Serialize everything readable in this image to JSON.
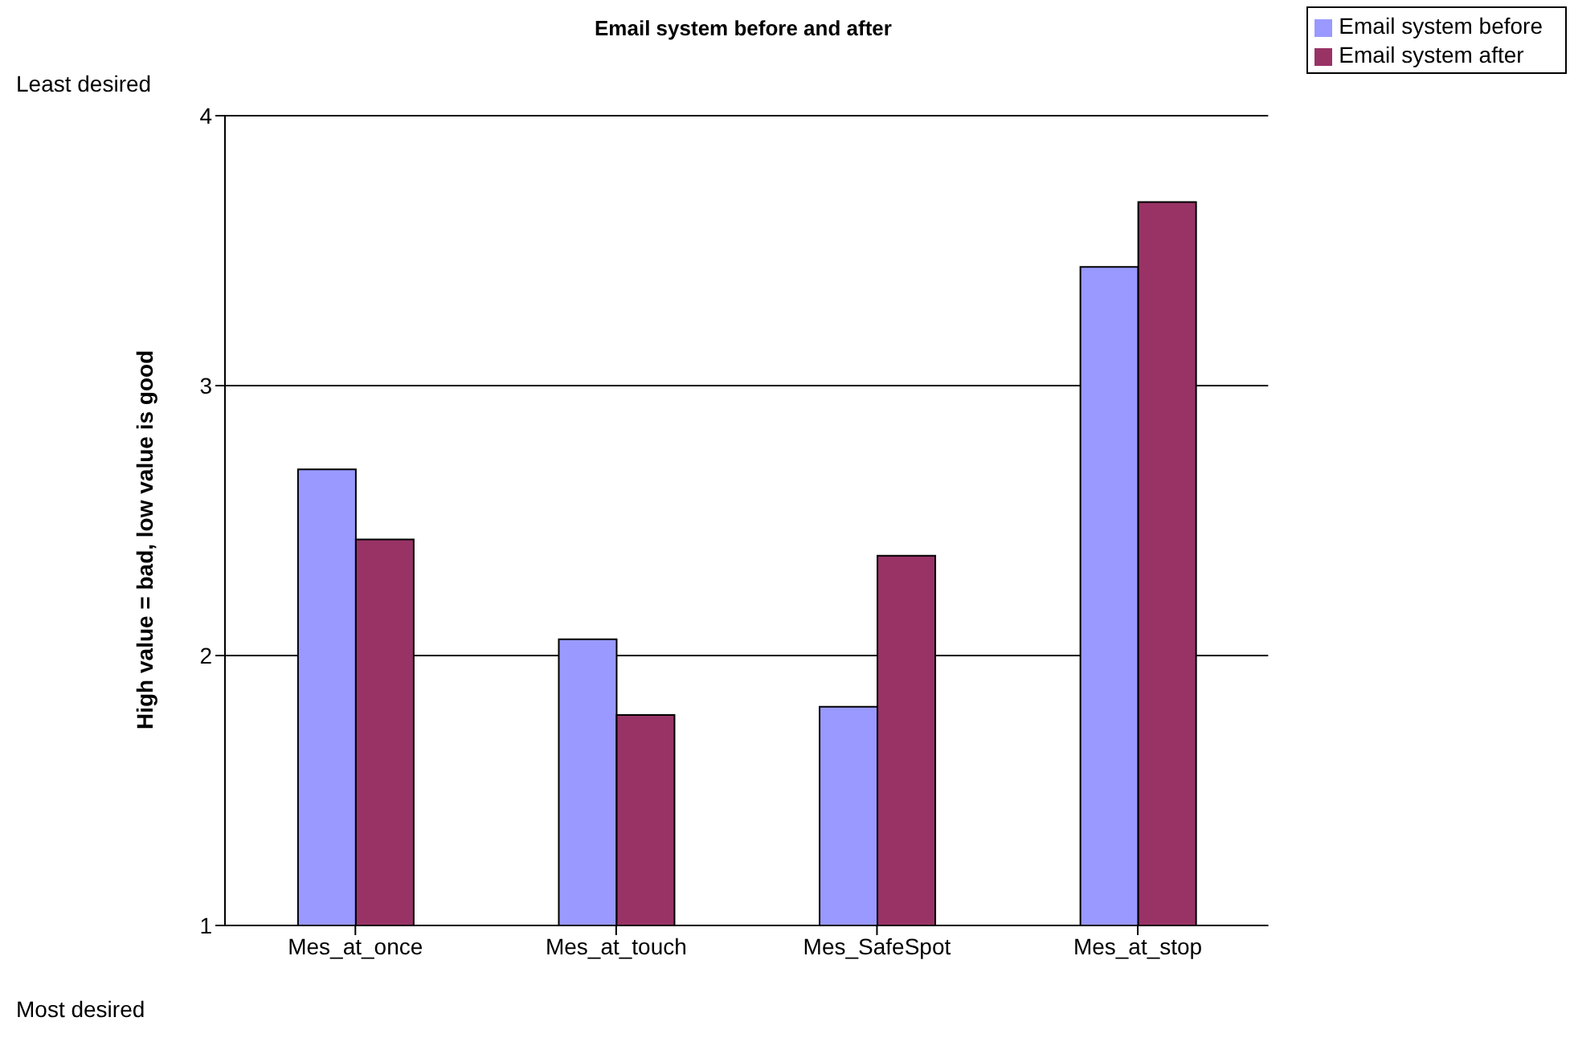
{
  "chart_data": {
    "type": "bar",
    "title": "Email system before and after",
    "ylabel": "High value = bad, low value is good",
    "categories": [
      "Mes_at_once",
      "Mes_at_touch",
      "Mes_SafeSpot",
      "Mes_at_stop"
    ],
    "series": [
      {
        "name": "Email system before",
        "color": "#9999ff",
        "values": [
          2.69,
          2.06,
          1.81,
          3.44
        ]
      },
      {
        "name": "Email system after",
        "color": "#993366",
        "values": [
          2.43,
          1.78,
          2.37,
          3.68
        ]
      }
    ],
    "ylim": [
      1,
      4
    ],
    "yticks": [
      1,
      2,
      3,
      4
    ],
    "grid": "y",
    "legend": "top right",
    "annotations": [
      "Least desired",
      "Most desired"
    ]
  }
}
